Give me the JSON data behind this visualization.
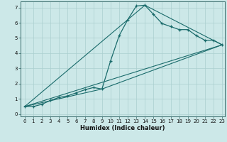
{
  "xlabel": "Humidex (Indice chaleur)",
  "ylabel": "",
  "background_color": "#cce8e8",
  "grid_color": "#aacfcf",
  "line_color": "#1a6b6b",
  "xlim": [
    -0.5,
    23.3
  ],
  "ylim": [
    -0.15,
    7.4
  ],
  "xticks": [
    0,
    1,
    2,
    3,
    4,
    5,
    6,
    7,
    8,
    9,
    10,
    11,
    12,
    13,
    14,
    15,
    16,
    17,
    18,
    19,
    20,
    21,
    22,
    23
  ],
  "yticks": [
    0,
    1,
    2,
    3,
    4,
    5,
    6,
    7
  ],
  "line1_x": [
    0,
    1,
    2,
    3,
    4,
    5,
    6,
    7,
    8,
    9,
    10,
    11,
    12,
    13,
    14,
    15,
    16,
    17,
    18,
    19,
    20,
    21,
    22,
    23
  ],
  "line1_y": [
    0.5,
    0.5,
    0.65,
    0.9,
    1.1,
    1.2,
    1.4,
    1.6,
    1.75,
    1.65,
    3.5,
    5.15,
    6.2,
    7.1,
    7.15,
    6.55,
    5.95,
    5.75,
    5.55,
    5.55,
    5.15,
    4.85,
    4.85,
    4.55
  ],
  "line2_x": [
    0,
    23
  ],
  "line2_y": [
    0.5,
    4.55
  ],
  "line3_x": [
    0,
    14,
    23
  ],
  "line3_y": [
    0.5,
    7.15,
    4.55
  ],
  "line4_x": [
    0,
    9,
    23
  ],
  "line4_y": [
    0.5,
    1.65,
    4.55
  ],
  "xlabel_fontsize": 6.0,
  "tick_fontsize": 5.0
}
